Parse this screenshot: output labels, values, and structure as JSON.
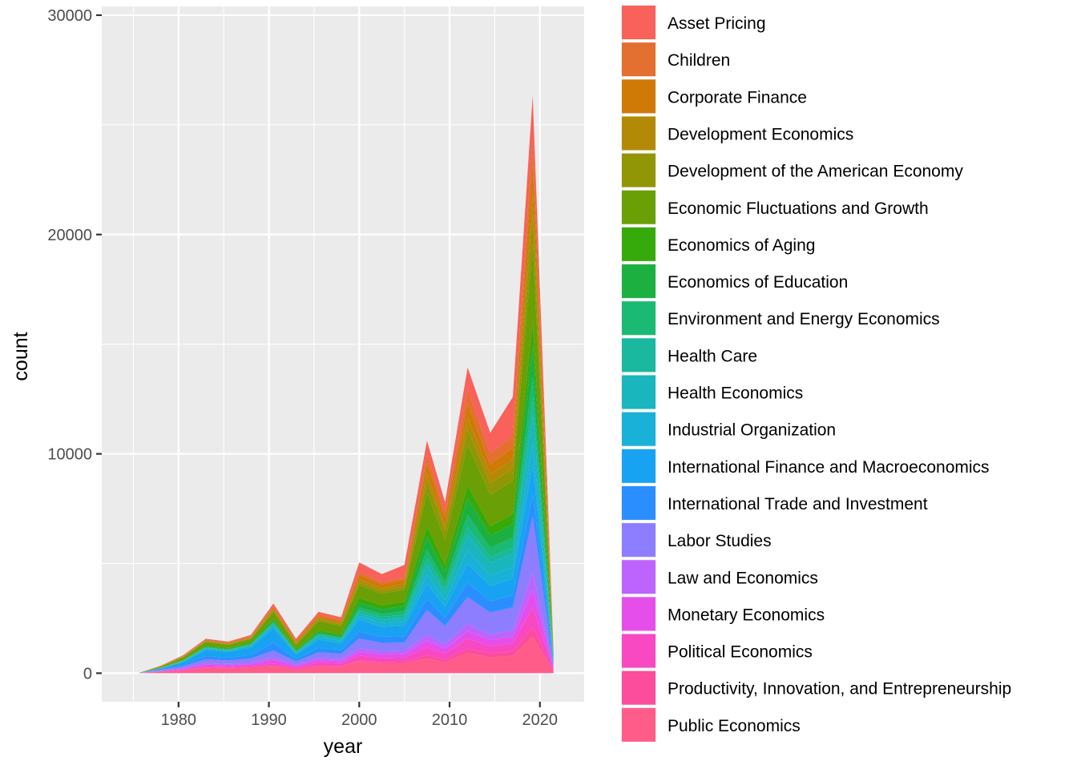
{
  "chart_data": {
    "type": "area",
    "stacked": true,
    "xlabel": "year",
    "ylabel": "count",
    "xlim": [
      1971.5,
      2024.9
    ],
    "ylim": [
      -1300,
      30400
    ],
    "x_ticks": [
      1980,
      1990,
      2000,
      2010,
      2020
    ],
    "y_ticks": [
      0,
      10000,
      20000,
      30000
    ],
    "grid": true,
    "legend_position": "right",
    "x": [
      1975.5,
      1978,
      1980.5,
      1983,
      1985.5,
      1988,
      1990.5,
      1993,
      1995.5,
      1998,
      2000,
      2002.5,
      2005,
      2007.5,
      2009.5,
      2012,
      2014.5,
      2017,
      2019.2,
      2021.5
    ],
    "series": [
      {
        "name": "Public Economics",
        "color": "#FF5C8A",
        "values": [
          0,
          60,
          130,
          260,
          240,
          270,
          350,
          200,
          350,
          330,
          560,
          470,
          470,
          680,
          500,
          930,
          730,
          790,
          1680,
          100
        ]
      },
      {
        "name": "Productivity, Innovation, and Entrepreneurship",
        "color": "#FC4C9C",
        "values": [
          0,
          0,
          0,
          0,
          0,
          0,
          0,
          0,
          0,
          0,
          40,
          40,
          60,
          140,
          120,
          200,
          180,
          200,
          420,
          30
        ]
      },
      {
        "name": "Political Economics",
        "color": "#F848C2",
        "values": [
          0,
          10,
          20,
          50,
          50,
          60,
          100,
          70,
          120,
          110,
          200,
          180,
          190,
          350,
          260,
          450,
          330,
          370,
          880,
          40
        ]
      },
      {
        "name": "Monetary Economics",
        "color": "#E64EEA",
        "values": [
          0,
          20,
          50,
          80,
          70,
          80,
          160,
          60,
          130,
          110,
          180,
          160,
          160,
          320,
          240,
          330,
          280,
          300,
          840,
          70
        ]
      },
      {
        "name": "Law and Economics",
        "color": "#BD64FF",
        "values": [
          0,
          20,
          40,
          70,
          60,
          80,
          120,
          60,
          100,
          100,
          150,
          150,
          140,
          270,
          210,
          340,
          250,
          300,
          810,
          40
        ]
      },
      {
        "name": "Labor Studies",
        "color": "#8C7EFF",
        "values": [
          0,
          40,
          80,
          180,
          160,
          180,
          300,
          150,
          250,
          230,
          450,
          380,
          380,
          1120,
          830,
          1220,
          1000,
          1040,
          2520,
          130
        ]
      },
      {
        "name": "International Trade and Investment",
        "color": "#2B8EFF",
        "values": [
          0,
          20,
          60,
          140,
          130,
          160,
          360,
          100,
          200,
          180,
          310,
          280,
          290,
          510,
          370,
          650,
          510,
          550,
          1000,
          70
        ]
      },
      {
        "name": "International Finance and Macroeconomics",
        "color": "#18A2F2",
        "values": [
          0,
          40,
          120,
          280,
          250,
          330,
          660,
          200,
          380,
          300,
          560,
          460,
          480,
          680,
          500,
          860,
          700,
          760,
          1360,
          90
        ]
      },
      {
        "name": "Industrial Organization",
        "color": "#1AB1D8",
        "values": [
          0,
          10,
          30,
          60,
          50,
          80,
          120,
          60,
          110,
          110,
          160,
          160,
          180,
          420,
          300,
          620,
          480,
          520,
          1000,
          40
        ]
      },
      {
        "name": "Health Economics",
        "color": "#19B6BE",
        "values": [
          0,
          10,
          20,
          30,
          30,
          40,
          70,
          40,
          70,
          70,
          140,
          160,
          180,
          460,
          350,
          700,
          560,
          600,
          1300,
          50
        ]
      },
      {
        "name": "Health Care",
        "color": "#19B89F",
        "values": [
          0,
          0,
          10,
          20,
          20,
          20,
          50,
          30,
          50,
          50,
          110,
          120,
          140,
          280,
          200,
          370,
          280,
          300,
          720,
          30
        ]
      },
      {
        "name": "Environment and Energy Economics",
        "color": "#1AB974",
        "values": [
          0,
          0,
          10,
          20,
          20,
          20,
          50,
          30,
          50,
          50,
          130,
          140,
          160,
          390,
          290,
          550,
          420,
          460,
          1000,
          40
        ]
      },
      {
        "name": "Economics of Education",
        "color": "#1CB040",
        "values": [
          0,
          10,
          20,
          30,
          30,
          40,
          70,
          50,
          80,
          70,
          210,
          210,
          230,
          600,
          440,
          760,
          560,
          600,
          1440,
          50
        ]
      },
      {
        "name": "Economics of Aging",
        "color": "#36AA0A",
        "values": [
          0,
          10,
          20,
          40,
          40,
          50,
          60,
          40,
          60,
          60,
          230,
          190,
          200,
          480,
          340,
          570,
          420,
          460,
          1040,
          40
        ]
      },
      {
        "name": "Economic Fluctuations and Growth",
        "color": "#6A9F06",
        "values": [
          0,
          50,
          110,
          160,
          140,
          150,
          340,
          200,
          420,
          370,
          570,
          520,
          540,
          1530,
          1120,
          1880,
          1430,
          1520,
          3560,
          100
        ]
      },
      {
        "name": "Development of the American Economy",
        "color": "#919606",
        "values": [
          0,
          10,
          20,
          30,
          30,
          30,
          60,
          50,
          80,
          70,
          140,
          130,
          130,
          560,
          420,
          720,
          520,
          560,
          1360,
          40
        ]
      },
      {
        "name": "Development Economics",
        "color": "#B38A06",
        "values": [
          0,
          0,
          10,
          20,
          20,
          20,
          50,
          40,
          60,
          60,
          140,
          120,
          130,
          330,
          240,
          510,
          400,
          430,
          1000,
          30
        ]
      },
      {
        "name": "Corporate Finance",
        "color": "#CF7A06",
        "values": [
          0,
          10,
          20,
          30,
          30,
          40,
          80,
          70,
          100,
          90,
          210,
          180,
          190,
          490,
          360,
          640,
          480,
          520,
          1440,
          40
        ]
      },
      {
        "name": "Children",
        "color": "#E36F30",
        "values": [
          0,
          10,
          20,
          30,
          30,
          30,
          60,
          40,
          70,
          70,
          120,
          100,
          100,
          350,
          260,
          630,
          480,
          520,
          1040,
          30
        ]
      },
      {
        "name": "Asset Pricing",
        "color": "#F8625A",
        "values": [
          0,
          10,
          30,
          40,
          40,
          60,
          120,
          80,
          120,
          120,
          440,
          370,
          580,
          640,
          450,
          1010,
          950,
          1790,
          1920,
          50
        ]
      }
    ]
  }
}
